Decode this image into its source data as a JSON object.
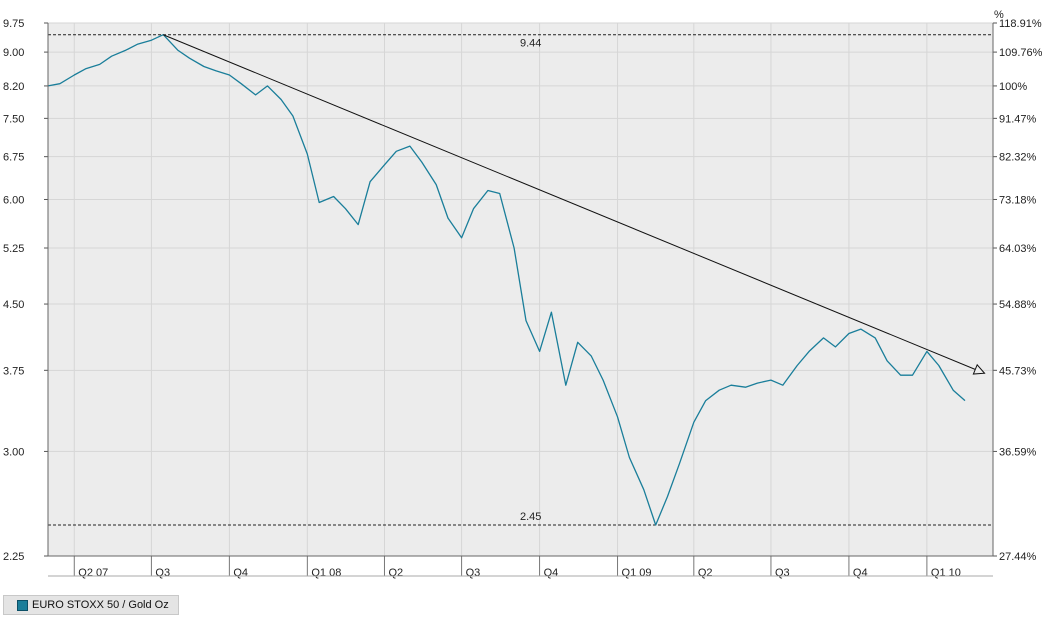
{
  "chart_data": {
    "type": "line",
    "title": "",
    "xlabel": "",
    "ylabel": "",
    "y_scale": "log",
    "ylim": [
      2.25,
      9.75
    ],
    "grid": true,
    "legend_placement": "bottom-left",
    "y_ticks_left": [
      "9.75",
      "9.00",
      "8.20",
      "7.50",
      "6.75",
      "6.00",
      "5.25",
      "4.50",
      "3.75",
      "3.00",
      "2.25"
    ],
    "y_ticks_right": [
      "118.91%",
      "109.76%",
      "100%",
      "91.47%",
      "82.32%",
      "73.18%",
      "64.03%",
      "54.88%",
      "45.73%",
      "36.59%",
      "27.44%"
    ],
    "right_axis_unit": "%",
    "x_ticks": [
      "Q2 07",
      "Q3",
      "Q4",
      "Q1 08",
      "Q2",
      "Q3",
      "Q4",
      "Q1 09",
      "Q2",
      "Q3",
      "Q4",
      "Q1 10"
    ],
    "series": [
      {
        "name": "EURO STOXX 50 / Gold Oz",
        "color": "#1a7e9a",
        "x": [
          "2007-03-01",
          "2007-03-15",
          "2007-04-01",
          "2007-04-15",
          "2007-05-01",
          "2007-05-15",
          "2007-06-01",
          "2007-06-15",
          "2007-07-01",
          "2007-07-15",
          "2007-08-01",
          "2007-08-15",
          "2007-09-01",
          "2007-09-15",
          "2007-10-01",
          "2007-10-15",
          "2007-11-01",
          "2007-11-15",
          "2007-12-01",
          "2007-12-15",
          "2008-01-01",
          "2008-01-15",
          "2008-02-01",
          "2008-02-15",
          "2008-03-01",
          "2008-03-15",
          "2008-04-01",
          "2008-04-15",
          "2008-05-01",
          "2008-05-15",
          "2008-06-01",
          "2008-06-15",
          "2008-07-01",
          "2008-07-15",
          "2008-08-01",
          "2008-08-15",
          "2008-09-01",
          "2008-09-15",
          "2008-10-01",
          "2008-10-15",
          "2008-11-01",
          "2008-11-15",
          "2008-12-01",
          "2008-12-15",
          "2009-01-01",
          "2009-01-15",
          "2009-02-01",
          "2009-02-15",
          "2009-03-01",
          "2009-03-15",
          "2009-04-01",
          "2009-04-15",
          "2009-05-01",
          "2009-05-15",
          "2009-06-01",
          "2009-06-15",
          "2009-07-01",
          "2009-07-15",
          "2009-08-01",
          "2009-08-15",
          "2009-09-01",
          "2009-09-15",
          "2009-10-01",
          "2009-10-15",
          "2009-11-01",
          "2009-11-15",
          "2009-12-01",
          "2009-12-15",
          "2010-01-01",
          "2010-01-15",
          "2010-02-01",
          "2010-02-15"
        ],
        "values": [
          8.2,
          8.25,
          8.45,
          8.6,
          8.7,
          8.9,
          9.05,
          9.2,
          9.3,
          9.44,
          9.05,
          8.85,
          8.65,
          8.55,
          8.45,
          8.25,
          8.0,
          8.2,
          7.9,
          7.55,
          6.8,
          5.95,
          6.05,
          5.85,
          5.6,
          6.3,
          6.6,
          6.85,
          6.95,
          6.65,
          6.25,
          5.7,
          5.4,
          5.85,
          6.15,
          6.1,
          5.25,
          4.3,
          3.95,
          4.4,
          3.6,
          4.05,
          3.9,
          3.65,
          3.3,
          2.95,
          2.7,
          2.45,
          2.65,
          2.9,
          3.25,
          3.45,
          3.55,
          3.6,
          3.58,
          3.62,
          3.65,
          3.6,
          3.8,
          3.95,
          4.1,
          4.0,
          4.15,
          4.2,
          4.1,
          3.85,
          3.7,
          3.7,
          3.95,
          3.8,
          3.55,
          3.45
        ]
      }
    ],
    "trendline": {
      "start": {
        "x": "2007-07-15",
        "y": 9.44
      },
      "end": {
        "x": "2010-03-10",
        "y": 3.72
      }
    },
    "reference_lines": [
      {
        "value": 9.44,
        "label": "9.44"
      },
      {
        "value": 2.45,
        "label": "2.45"
      }
    ]
  },
  "legend": {
    "label": "EURO STOXX 50 / Gold Oz",
    "color": "#1a7e9a"
  }
}
